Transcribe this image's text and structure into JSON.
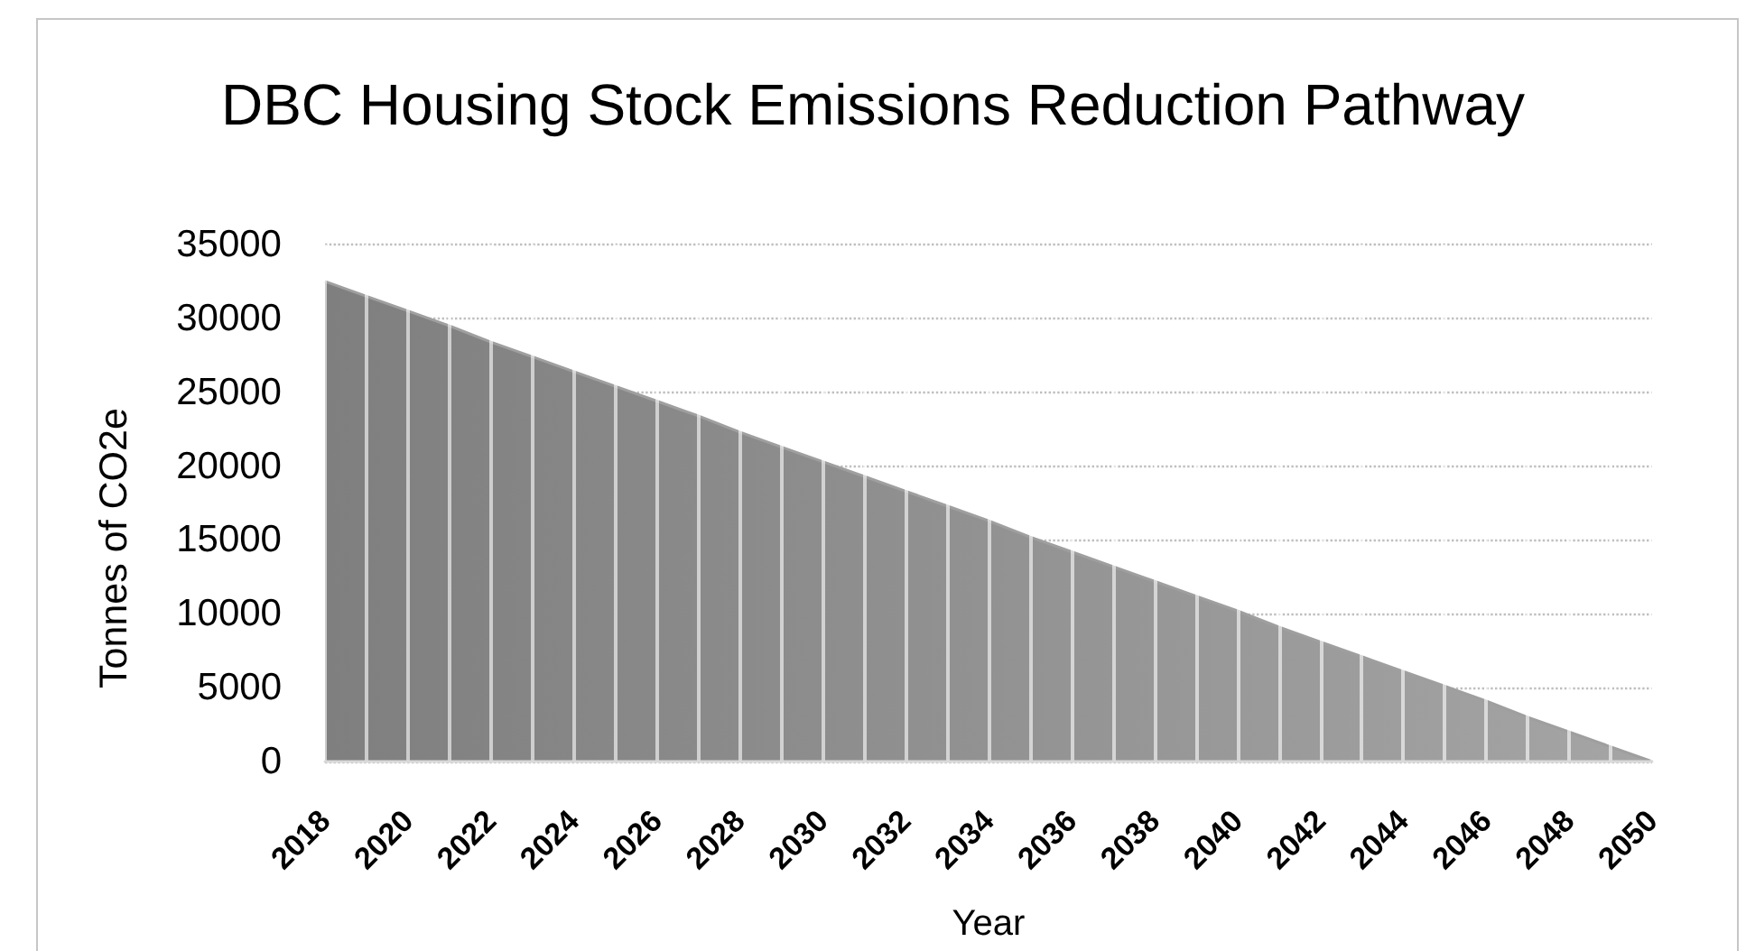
{
  "chart_data": {
    "type": "area",
    "title": "DBC Housing Stock Emissions Reduction Pathway",
    "xlabel": "Year",
    "ylabel": "Tonnes of CO2e",
    "categories": [
      "2018",
      null,
      "2020",
      null,
      "2022",
      null,
      "2024",
      null,
      "2026",
      null,
      "2028",
      null,
      "2030",
      null,
      "2032",
      null,
      "2034",
      null,
      "2036",
      null,
      "2038",
      null,
      "2040",
      null,
      "2042",
      null,
      "2044",
      null,
      "2046",
      null,
      "2048",
      null,
      "2050"
    ],
    "values": [
      32500,
      31500,
      30500,
      29500,
      28400,
      27400,
      26400,
      25400,
      24400,
      23400,
      22300,
      21300,
      20300,
      19300,
      18300,
      17300,
      16300,
      15200,
      14200,
      13200,
      12200,
      11200,
      10200,
      9100,
      8100,
      7100,
      6100,
      5100,
      4100,
      3000,
      2000,
      1000,
      0
    ],
    "color": "#7f7f7f",
    "ylim": [
      0,
      35000
    ],
    "yticks": [
      0,
      5000,
      10000,
      15000,
      20000,
      25000,
      30000,
      35000
    ],
    "grid": true
  }
}
